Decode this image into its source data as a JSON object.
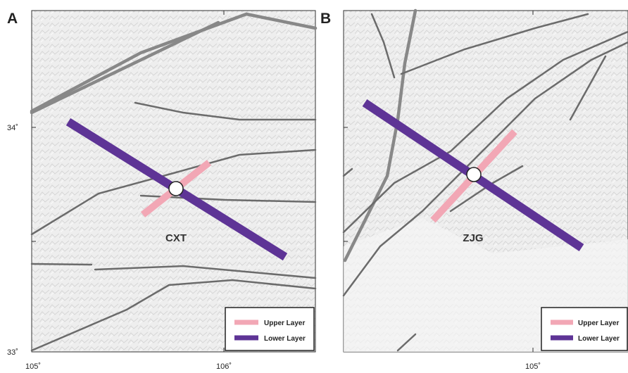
{
  "panels": [
    {
      "label": "A",
      "station": "CXT",
      "yticks": [
        "34˚",
        "33˚"
      ],
      "xticks": [
        "105˚",
        "106˚"
      ],
      "legend": [
        {
          "name": "Upper Layer",
          "color": "#f2a7b5"
        },
        {
          "name": "Lower Layer",
          "color": "#5e3496"
        }
      ]
    },
    {
      "label": "B",
      "station": "ZJG",
      "xticks": [
        "105˚"
      ],
      "legend": [
        {
          "name": "Upper Layer",
          "color": "#f2a7b5"
        },
        {
          "name": "Lower Layer",
          "color": "#5e3496"
        }
      ]
    }
  ]
}
